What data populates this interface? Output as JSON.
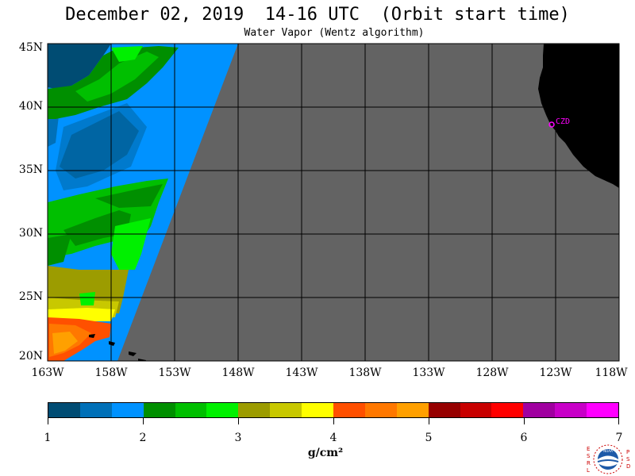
{
  "header": {
    "title": "December 02, 2019  14-16 UTC  (Orbit start time)",
    "subtitle": "Water Vapor (Wentz algorithm)"
  },
  "map": {
    "lat_labels": [
      "45N",
      "40N",
      "35N",
      "30N",
      "25N",
      "20N"
    ],
    "lon_labels": [
      "163W",
      "158W",
      "153W",
      "148W",
      "143W",
      "138W",
      "133W",
      "128W",
      "123W",
      "118W"
    ],
    "no_data_color": "#636363",
    "land_color": "#000000",
    "station_label": "CZD",
    "station_color": "#ff00ff"
  },
  "colorbar": {
    "tick_labels": [
      "1",
      "2",
      "3",
      "4",
      "5",
      "6",
      "7"
    ],
    "units": "g/cm²",
    "colors": [
      "#004c73",
      "#0070b8",
      "#0092ff",
      "#008f00",
      "#00bf00",
      "#00f000",
      "#9c9c00",
      "#c8c800",
      "#ffff00",
      "#ff5000",
      "#ff7800",
      "#ffa000",
      "#960000",
      "#c80000",
      "#ff0000",
      "#a000a0",
      "#c800c8",
      "#ff00ff"
    ]
  },
  "logo": {
    "left_letters": "ESRL",
    "right_letters": "PSD",
    "center": "NOAA"
  }
}
